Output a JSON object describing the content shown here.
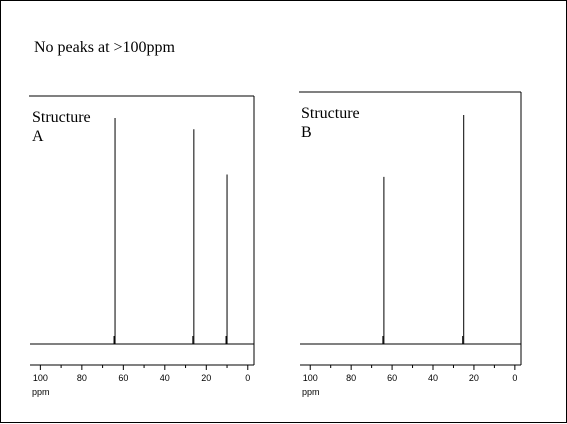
{
  "slide": {
    "note": "No peaks at >100ppm"
  },
  "chart_data": [
    {
      "type": "line",
      "title_lines": [
        "Structure",
        "A"
      ],
      "xlabel": "ppm",
      "xlim": [
        105,
        -3
      ],
      "ticks": [
        100,
        80,
        60,
        40,
        20,
        0
      ],
      "grid": false,
      "peaks": [
        {
          "ppm": 64,
          "height": 1.0
        },
        {
          "ppm": 26,
          "height": 0.95
        },
        {
          "ppm": 10,
          "height": 0.75
        }
      ],
      "colors": {
        "line": "#000000",
        "axes": "#000000"
      }
    },
    {
      "type": "line",
      "title_lines": [
        "Structure",
        "B"
      ],
      "xlabel": "ppm",
      "xlim": [
        105,
        -3
      ],
      "ticks": [
        100,
        80,
        60,
        40,
        20,
        0
      ],
      "grid": false,
      "peaks": [
        {
          "ppm": 64,
          "height": 0.73
        },
        {
          "ppm": 25,
          "height": 1.0
        }
      ],
      "colors": {
        "line": "#000000",
        "axes": "#000000"
      }
    }
  ]
}
